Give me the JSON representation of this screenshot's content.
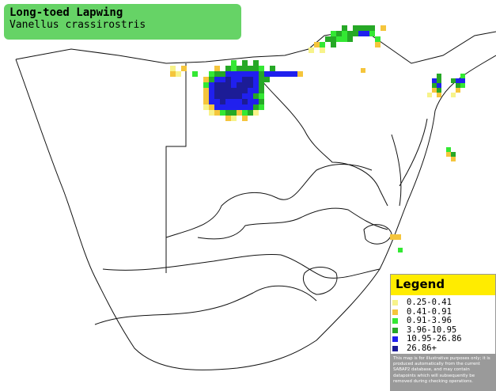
{
  "header": {
    "title": "Long-toed Lapwing",
    "subtitle": "Vanellus crassirostris"
  },
  "legend": {
    "title": "Legend",
    "items": [
      {
        "label": "0.25-0.41",
        "color": "#f7f38a"
      },
      {
        "label": "0.41-0.91",
        "color": "#f5c53c"
      },
      {
        "label": "0.91-3.96",
        "color": "#33e833"
      },
      {
        "label": "3.96-10.95",
        "color": "#26a826"
      },
      {
        "label": "10.95-26.86",
        "color": "#2020ee"
      },
      {
        "label": "26.86+",
        "color": "#1c1c96"
      }
    ],
    "note": "This map is for illustrative purposes only; it is produced automatically from the current SABAP2 database, and may contain datapoints which will subsequently be removed during checking operations."
  }
}
